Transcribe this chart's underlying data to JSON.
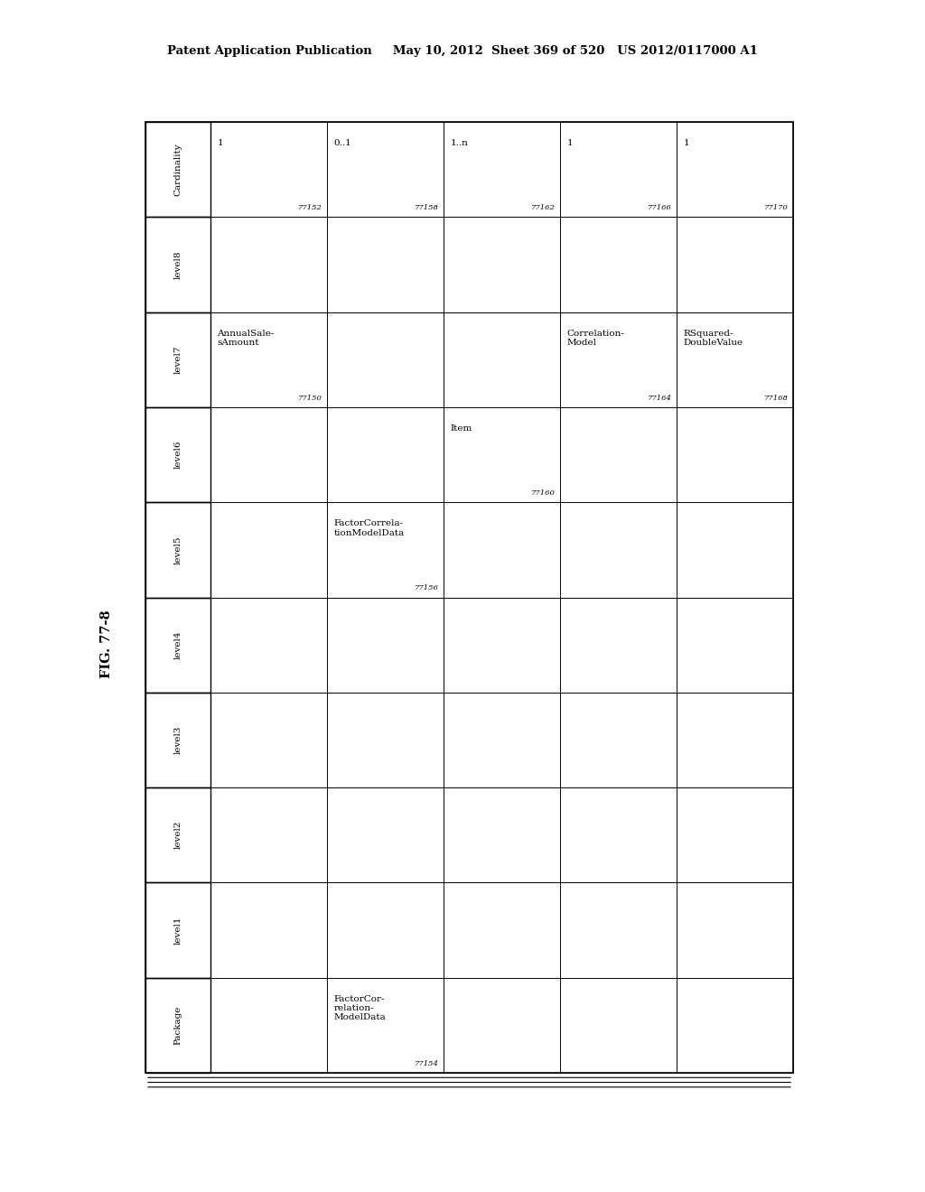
{
  "header_text": "Patent Application Publication     May 10, 2012  Sheet 369 of 520   US 2012/0117000 A1",
  "fig_label": "FIG. 77-8",
  "row_headers": [
    "Cardinality",
    "level8",
    "level7",
    "level6",
    "level5",
    "level4",
    "level3",
    "level2",
    "level1",
    "Package"
  ],
  "n_data_cols": 5,
  "cells": {
    "Cardinality": [
      "1\n\n77152",
      "0..1\n\n77158",
      "1..n\n\n77162",
      "1\n\n77166",
      "1\n\n77170"
    ],
    "level8": [
      "",
      "",
      "",
      "",
      ""
    ],
    "level7": [
      "AnnualSale-\nsAmount\n\n77150",
      "",
      "",
      "Correlation-\nModel\n\n77164",
      "RSquared-\nDoubleValue\n\n77168"
    ],
    "level6": [
      "",
      "",
      "Item\n\n77160",
      "",
      ""
    ],
    "level5": [
      "",
      "FactorCorrela-\ntionModelData\n\n77156",
      "",
      "",
      ""
    ],
    "level4": [
      "",
      "",
      "",
      "",
      ""
    ],
    "level3": [
      "",
      "",
      "",
      "",
      ""
    ],
    "level2": [
      "",
      "",
      "",
      "",
      ""
    ],
    "level1": [
      "",
      "",
      "",
      "",
      ""
    ],
    "Package": [
      "",
      "FactorCor-\nrelation-\nModelData\n\n77154",
      "",
      "",
      ""
    ]
  },
  "background_color": "#ffffff",
  "line_color": "#000000",
  "text_color": "#000000",
  "font_size": 7.5,
  "header_font_size": 9.5,
  "id_font_size": 6
}
